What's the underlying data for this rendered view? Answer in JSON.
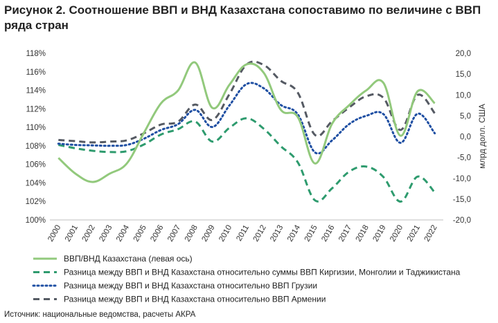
{
  "title": "Рисунок 2. Соотношение ВВП и ВНД Казахстана сопоставимо по величине с ВВП ряда стран",
  "source": "Источник: национальные ведомства, расчеты АКРА",
  "chart_data": {
    "type": "line",
    "x": [
      "2000",
      "2001",
      "2002",
      "2003",
      "2004",
      "2005",
      "2006",
      "2007",
      "2008",
      "2009",
      "2010",
      "2011",
      "2012",
      "2013",
      "2014",
      "2015",
      "2016",
      "2017",
      "2018",
      "2019",
      "2020",
      "2021",
      "2022"
    ],
    "y_left": {
      "label": "",
      "ylim": [
        100,
        118
      ],
      "ticks": [
        "100%",
        "102%",
        "104%",
        "106%",
        "108%",
        "110%",
        "112%",
        "114%",
        "116%",
        "118%"
      ]
    },
    "y_right": {
      "label": "млрд долл. США",
      "ylim": [
        -20,
        20
      ],
      "ticks": [
        "-20,0",
        "-15,0",
        "-10,0",
        "-5,0",
        "0,0",
        "5,0",
        "10,0",
        "15,0",
        "20,0"
      ]
    },
    "grid": false,
    "legend_position": "bottom",
    "series": [
      {
        "name": "ВВП/ВНД Казахстана (левая ось)",
        "axis": "left",
        "color": "#92c97c",
        "style": "solid",
        "values": [
          106.7,
          105.0,
          104.1,
          105.0,
          106.1,
          109.4,
          112.6,
          114.0,
          117.0,
          112.1,
          114.6,
          116.8,
          115.9,
          111.9,
          111.1,
          106.1,
          110.4,
          112.4,
          114.0,
          114.8,
          109.1,
          113.9,
          112.6
        ]
      },
      {
        "name": "Разница между ВВП и ВНД Казахстана относительно суммы ВВП Киргизии, Монголии и Таджикистана",
        "axis": "right",
        "color": "#2e9b6e",
        "style": "dashed",
        "values": [
          -2.0,
          -2.8,
          -3.4,
          -3.7,
          -3.5,
          -1.9,
          0.5,
          1.8,
          3.6,
          -1.2,
          2.1,
          4.4,
          1.9,
          -2.3,
          -6.2,
          -15.3,
          -12.4,
          -8.4,
          -7.2,
          -9.7,
          -15.6,
          -9.6,
          -13.4
        ]
      },
      {
        "name": "Разница между ВВП и ВНД Казахстана относительно ВВП Грузии",
        "axis": "right",
        "color": "#1f4fa3",
        "style": "dotted",
        "values": [
          -1.7,
          -2.0,
          -2.1,
          -2.2,
          -2.0,
          -0.5,
          1.6,
          3.0,
          6.4,
          2.3,
          7.5,
          12.6,
          11.6,
          7.6,
          5.3,
          -3.8,
          -0.9,
          3.0,
          5.0,
          5.4,
          -1.5,
          5.5,
          0.8
        ]
      },
      {
        "name": "Разница между ВВП и ВНД Казахстана относительно ВВП Армении",
        "axis": "right",
        "color": "#555a63",
        "style": "dashed",
        "values": [
          -0.8,
          -1.1,
          -1.4,
          -1.2,
          -0.9,
          0.8,
          2.9,
          3.6,
          7.7,
          4.0,
          10.2,
          17.3,
          17.2,
          13.4,
          10.5,
          0.4,
          3.7,
          7.0,
          9.7,
          9.3,
          1.6,
          10.0,
          5.6
        ]
      }
    ]
  }
}
